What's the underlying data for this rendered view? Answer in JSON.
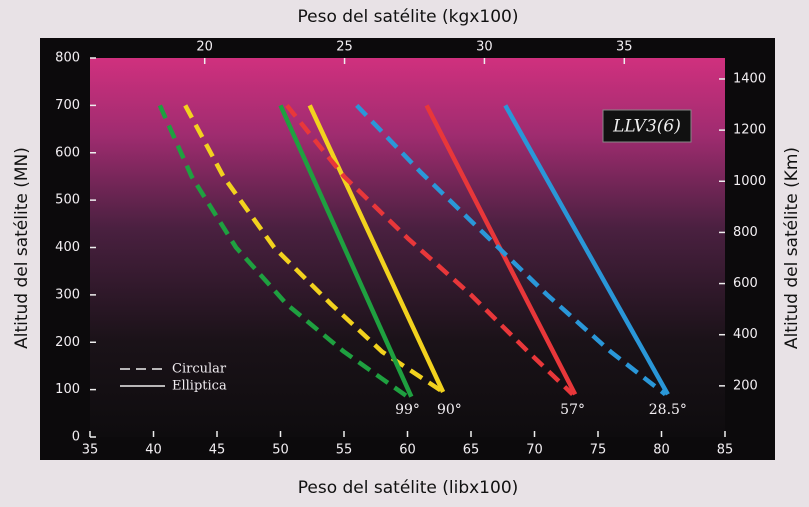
{
  "chart_data": {
    "type": "line",
    "title_top": "Peso del satélite (kgx100)",
    "title_bottom": "Peso del satélite (libx100)",
    "title_left": "Altitud del satélite (MN)",
    "title_right": "Altitud del satélite (Km)",
    "box_label": "LLV3(6)",
    "xlim": [
      35,
      85
    ],
    "xticks": [
      35,
      40,
      45,
      50,
      55,
      60,
      65,
      70,
      75,
      80,
      85
    ],
    "x2lim": [
      15.9,
      38.6
    ],
    "x2ticks": [
      20,
      25,
      30,
      35
    ],
    "ylim": [
      0,
      800
    ],
    "yticks": [
      0,
      100,
      200,
      300,
      400,
      500,
      600,
      700,
      800
    ],
    "y2lim": [
      0,
      1482
    ],
    "y2ticks": [
      200,
      400,
      600,
      800,
      1000,
      1200,
      1400
    ],
    "legend": [
      {
        "label": "Circular",
        "dashed": true
      },
      {
        "label": "Elliptica",
        "dashed": false
      }
    ],
    "series": [
      {
        "color": "#1fa040",
        "dashed": true,
        "x": [
          40.5,
          43,
          46.5,
          50.5,
          55,
          60
        ],
        "values": [
          700,
          550,
          400,
          280,
          180,
          85
        ]
      },
      {
        "color": "#f2d21e",
        "dashed": true,
        "x": [
          42.5,
          45.5,
          49.5,
          54,
          58,
          62.8
        ],
        "values": [
          700,
          550,
          400,
          280,
          180,
          95
        ]
      },
      {
        "color": "#1fa040",
        "dashed": false,
        "x": [
          50,
          60.3
        ],
        "values": [
          700,
          85
        ]
      },
      {
        "color": "#f2d21e",
        "dashed": false,
        "x": [
          52.3,
          62.8
        ],
        "values": [
          700,
          95
        ]
      },
      {
        "color": "#e8373a",
        "dashed": true,
        "x": [
          50.5,
          55,
          60,
          65,
          69.5,
          73
        ],
        "values": [
          700,
          550,
          420,
          300,
          180,
          90
        ]
      },
      {
        "color": "#e8373a",
        "dashed": false,
        "x": [
          61.5,
          73.2
        ],
        "values": [
          700,
          90
        ]
      },
      {
        "color": "#2a97d8",
        "dashed": true,
        "x": [
          56,
          61,
          66,
          71,
          76,
          80.3
        ],
        "values": [
          700,
          560,
          430,
          300,
          180,
          90
        ]
      },
      {
        "color": "#2a97d8",
        "dashed": false,
        "x": [
          67.7,
          80.5
        ],
        "values": [
          700,
          90
        ]
      }
    ],
    "annotations": [
      {
        "text": "99°",
        "x": 60
      },
      {
        "text": "90°",
        "x": 63.3
      },
      {
        "text": "57°",
        "x": 73
      },
      {
        "text": "28.5°",
        "x": 80.5
      }
    ]
  }
}
